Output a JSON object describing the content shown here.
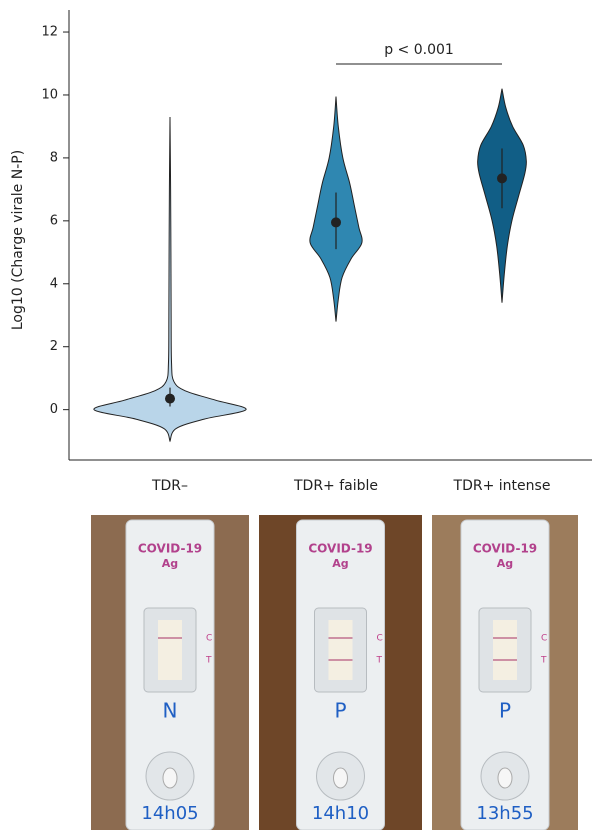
{
  "chart_data": {
    "type": "violin",
    "y_label": "Log10 (Charge virale N-P)",
    "categories": [
      "TDR–",
      "TDR+ faible",
      "TDR+ intense"
    ],
    "ylim": [
      -1.6,
      12.7
    ],
    "yticks": [
      0,
      2,
      4,
      6,
      8,
      10,
      12
    ],
    "annotation": "p < 0.001",
    "series": [
      {
        "color": "#b9d5e9",
        "median": 0.35,
        "q1": 0.1,
        "q3": 0.7,
        "density_y": [
          -1.0,
          -0.6,
          -0.3,
          0,
          0.3,
          0.6,
          0.9,
          1.5,
          3,
          5,
          7,
          9.3
        ],
        "density_width": [
          0,
          0.08,
          0.45,
          1.0,
          0.6,
          0.2,
          0.05,
          0.02,
          0.015,
          0.012,
          0.008,
          0
        ]
      },
      {
        "color": "#2f87b1",
        "median": 5.95,
        "q1": 5.1,
        "q3": 6.9,
        "density_y": [
          2.8,
          3.5,
          4.2,
          4.8,
          5.3,
          5.8,
          6.5,
          7.2,
          8,
          9,
          9.95
        ],
        "density_width": [
          0,
          0.03,
          0.08,
          0.2,
          0.34,
          0.3,
          0.24,
          0.18,
          0.09,
          0.03,
          0
        ]
      },
      {
        "color": "#115e86",
        "median": 7.35,
        "q1": 6.4,
        "q3": 8.3,
        "density_y": [
          3.4,
          4.3,
          5.2,
          6,
          6.8,
          7.5,
          7.9,
          8.4,
          9,
          9.6,
          10.2
        ],
        "density_width": [
          0,
          0.03,
          0.07,
          0.13,
          0.22,
          0.3,
          0.32,
          0.28,
          0.14,
          0.05,
          0
        ]
      }
    ]
  },
  "photos": [
    {
      "brand": "COVID-19",
      "sub": "Ag",
      "c": "C",
      "t": "T",
      "letter": "N",
      "time": "14h05"
    },
    {
      "brand": "COVID-19",
      "sub": "Ag",
      "c": "C",
      "t": "T",
      "letter": "P",
      "time": "14h10"
    },
    {
      "brand": "COVID-19",
      "sub": "Ag",
      "c": "C",
      "t": "T",
      "letter": "P",
      "time": "13h55"
    }
  ]
}
